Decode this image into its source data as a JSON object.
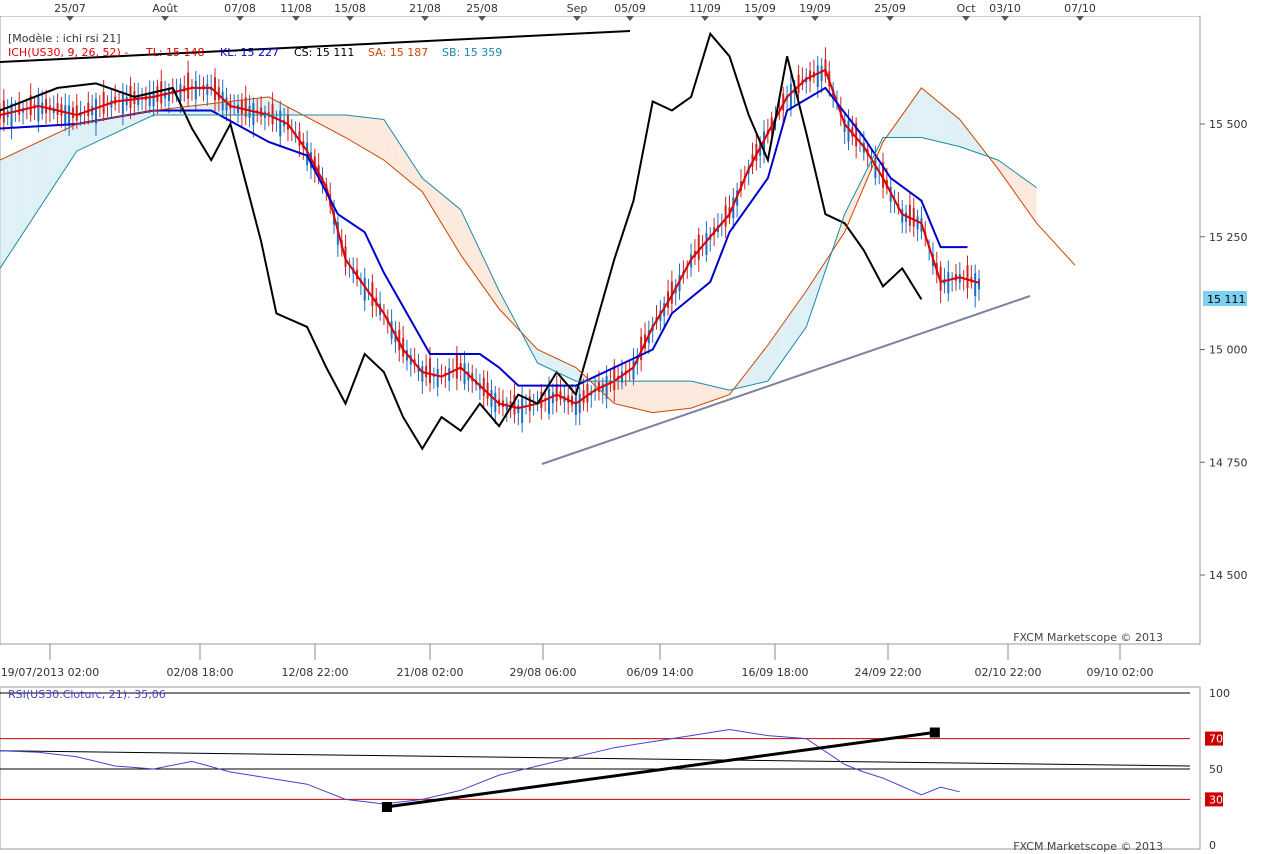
{
  "main_panel": {
    "model_label": "[Modèle : ichi rsi 21]",
    "indicator_title": "ICH(US30, 9, 26, 52) -",
    "legend": [
      {
        "label": "TL: 15 148",
        "color": "#dd0000"
      },
      {
        "label": "KL: 15 227",
        "color": "#0000cc"
      },
      {
        "label": "CS: 15 111",
        "color": "#000000"
      },
      {
        "label": "SA: 15 187",
        "color": "#cc4400"
      },
      {
        "label": "SB: 15 359",
        "color": "#1a8aa8"
      }
    ],
    "watermark": "FXCM Marketscope © 2013",
    "current_price_label": "15 111"
  },
  "top_dates": [
    "25/07",
    "Août",
    "07/08",
    "11/08",
    "15/08",
    "21/08",
    "25/08",
    "Sep",
    "05/09",
    "11/09",
    "15/09",
    "19/09",
    "25/09",
    "Oct",
    "03/10",
    "07/10"
  ],
  "bottom_dates": [
    "19/07/2013 02:00",
    "02/08 18:00",
    "12/08 22:00",
    "21/08 02:00",
    "29/08 06:00",
    "06/09 14:00",
    "16/09 18:00",
    "24/09 22:00",
    "02/10 22:00",
    "09/10 02:00"
  ],
  "rsi_panel": {
    "title": "RSI(US30.Cloturc, 21): 35,06",
    "levels": [
      "100",
      "70",
      "50",
      "30",
      "0"
    ],
    "watermark": "FXCM Marketscope © 2013"
  },
  "chart_data": [
    {
      "type": "line",
      "title": "ICH(US30, 9, 26, 52)",
      "ylim": [
        14350,
        15750
      ],
      "y_ticks": [
        15500,
        15250,
        15000,
        14750,
        14500
      ],
      "y_tick_labels": [
        "15 500",
        "15 250",
        "15 000",
        "14 750",
        "14 500"
      ],
      "x_index_range": [
        0,
        280
      ],
      "series": [
        {
          "name": "TL",
          "color": "#dd0000",
          "points": [
            [
              0,
              15520
            ],
            [
              10,
              15540
            ],
            [
              20,
              15520
            ],
            [
              30,
              15550
            ],
            [
              40,
              15560
            ],
            [
              50,
              15580
            ],
            [
              55,
              15580
            ],
            [
              60,
              15540
            ],
            [
              70,
              15520
            ],
            [
              75,
              15500
            ],
            [
              80,
              15440
            ],
            [
              85,
              15360
            ],
            [
              90,
              15200
            ],
            [
              95,
              15140
            ],
            [
              100,
              15080
            ],
            [
              105,
              15000
            ],
            [
              110,
              14950
            ],
            [
              115,
              14940
            ],
            [
              120,
              14960
            ],
            [
              125,
              14920
            ],
            [
              130,
              14880
            ],
            [
              135,
              14870
            ],
            [
              140,
              14880
            ],
            [
              145,
              14900
            ],
            [
              150,
              14880
            ],
            [
              155,
              14910
            ],
            [
              160,
              14930
            ],
            [
              165,
              14960
            ],
            [
              170,
              15050
            ],
            [
              175,
              15120
            ],
            [
              180,
              15200
            ],
            [
              185,
              15250
            ],
            [
              190,
              15300
            ],
            [
              195,
              15400
            ],
            [
              200,
              15480
            ],
            [
              205,
              15560
            ],
            [
              210,
              15600
            ],
            [
              215,
              15620
            ],
            [
              220,
              15500
            ],
            [
              225,
              15450
            ],
            [
              230,
              15380
            ],
            [
              235,
              15300
            ],
            [
              240,
              15280
            ],
            [
              245,
              15150
            ],
            [
              250,
              15160
            ],
            [
              255,
              15148
            ]
          ]
        },
        {
          "name": "KL",
          "color": "#0000cc",
          "points": [
            [
              0,
              15490
            ],
            [
              20,
              15500
            ],
            [
              40,
              15530
            ],
            [
              55,
              15530
            ],
            [
              70,
              15460
            ],
            [
              80,
              15430
            ],
            [
              88,
              15300
            ],
            [
              95,
              15260
            ],
            [
              100,
              15170
            ],
            [
              108,
              15050
            ],
            [
              112,
              14990
            ],
            [
              125,
              14990
            ],
            [
              130,
              14960
            ],
            [
              135,
              14920
            ],
            [
              140,
              14920
            ],
            [
              150,
              14920
            ],
            [
              160,
              14960
            ],
            [
              170,
              15000
            ],
            [
              175,
              15080
            ],
            [
              185,
              15150
            ],
            [
              190,
              15260
            ],
            [
              200,
              15380
            ],
            [
              205,
              15530
            ],
            [
              215,
              15580
            ],
            [
              225,
              15470
            ],
            [
              232,
              15380
            ],
            [
              240,
              15330
            ],
            [
              245,
              15227
            ],
            [
              252,
              15227
            ]
          ]
        },
        {
          "name": "CS",
          "color": "#000000",
          "points": [
            [
              0,
              15530
            ],
            [
              15,
              15580
            ],
            [
              25,
              15590
            ],
            [
              35,
              15560
            ],
            [
              45,
              15580
            ],
            [
              50,
              15490
            ],
            [
              55,
              15420
            ],
            [
              60,
              15500
            ],
            [
              68,
              15240
            ],
            [
              72,
              15080
            ],
            [
              80,
              15050
            ],
            [
              85,
              14960
            ],
            [
              90,
              14880
            ],
            [
              95,
              14990
            ],
            [
              100,
              14950
            ],
            [
              105,
              14850
            ],
            [
              110,
              14780
            ],
            [
              115,
              14850
            ],
            [
              120,
              14820
            ],
            [
              125,
              14880
            ],
            [
              130,
              14830
            ],
            [
              135,
              14900
            ],
            [
              140,
              14880
            ],
            [
              145,
              14950
            ],
            [
              150,
              14900
            ],
            [
              155,
              15050
            ],
            [
              160,
              15200
            ],
            [
              165,
              15330
            ],
            [
              170,
              15550
            ],
            [
              175,
              15530
            ],
            [
              180,
              15560
            ],
            [
              185,
              15700
            ],
            [
              190,
              15650
            ],
            [
              195,
              15520
            ],
            [
              200,
              15420
            ],
            [
              205,
              15650
            ],
            [
              210,
              15480
            ],
            [
              215,
              15300
            ],
            [
              220,
              15280
            ],
            [
              225,
              15220
            ],
            [
              230,
              15140
            ],
            [
              235,
              15180
            ],
            [
              240,
              15111
            ]
          ]
        },
        {
          "name": "SA",
          "color": "#cc4400",
          "points": [
            [
              0,
              15420
            ],
            [
              20,
              15500
            ],
            [
              40,
              15530
            ],
            [
              70,
              15560
            ],
            [
              90,
              15470
            ],
            [
              100,
              15420
            ],
            [
              110,
              15350
            ],
            [
              120,
              15210
            ],
            [
              130,
              15090
            ],
            [
              140,
              15000
            ],
            [
              150,
              14960
            ],
            [
              160,
              14880
            ],
            [
              170,
              14860
            ],
            [
              180,
              14870
            ],
            [
              190,
              14900
            ],
            [
              200,
              15010
            ],
            [
              210,
              15130
            ],
            [
              220,
              15260
            ],
            [
              230,
              15460
            ],
            [
              240,
              15580
            ],
            [
              250,
              15510
            ],
            [
              260,
              15400
            ],
            [
              270,
              15280
            ],
            [
              280,
              15187
            ]
          ]
        },
        {
          "name": "SB",
          "color": "#1a8aa8",
          "points": [
            [
              0,
              15180
            ],
            [
              20,
              15440
            ],
            [
              40,
              15520
            ],
            [
              70,
              15520
            ],
            [
              90,
              15520
            ],
            [
              100,
              15510
            ],
            [
              110,
              15380
            ],
            [
              120,
              15310
            ],
            [
              130,
              15130
            ],
            [
              140,
              14970
            ],
            [
              150,
              14930
            ],
            [
              160,
              14930
            ],
            [
              170,
              14930
            ],
            [
              180,
              14930
            ],
            [
              190,
              14910
            ],
            [
              200,
              14930
            ],
            [
              210,
              15050
            ],
            [
              220,
              15300
            ],
            [
              230,
              15470
            ],
            [
              240,
              15470
            ],
            [
              250,
              15450
            ],
            [
              260,
              15420
            ],
            [
              270,
              15359
            ]
          ]
        }
      ]
    },
    {
      "type": "line",
      "title": "RSI(US30.Cloturc, 21): 35,06",
      "ylim": [
        0,
        100
      ],
      "y_ticks": [
        100,
        70,
        50,
        30,
        0
      ],
      "series": [
        {
          "name": "RSI",
          "color": "#4444cc",
          "points": [
            [
              0,
              62
            ],
            [
              10,
              61
            ],
            [
              20,
              58
            ],
            [
              30,
              52
            ],
            [
              40,
              50
            ],
            [
              50,
              55
            ],
            [
              60,
              48
            ],
            [
              70,
              44
            ],
            [
              80,
              40
            ],
            [
              90,
              30
            ],
            [
              100,
              27
            ],
            [
              110,
              30
            ],
            [
              120,
              36
            ],
            [
              130,
              46
            ],
            [
              140,
              52
            ],
            [
              150,
              58
            ],
            [
              160,
              64
            ],
            [
              170,
              68
            ],
            [
              180,
              72
            ],
            [
              190,
              76
            ],
            [
              200,
              72
            ],
            [
              210,
              70
            ],
            [
              220,
              53
            ],
            [
              225,
              48
            ],
            [
              230,
              44
            ],
            [
              240,
              33
            ],
            [
              245,
              38
            ],
            [
              250,
              35
            ]
          ]
        },
        {
          "name": "trend",
          "color": "#000000",
          "points": [
            [
              100,
              25
            ],
            [
              225,
              74
            ]
          ]
        }
      ]
    }
  ]
}
